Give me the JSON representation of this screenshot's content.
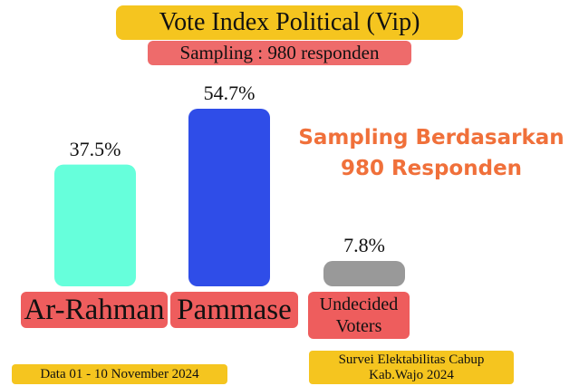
{
  "header": {
    "title": "Vote Index Political (Vip)",
    "subtitle": "Sampling : 980 responden"
  },
  "note": {
    "line1": "Sampling Berdasarkan",
    "line2": "980 Responden"
  },
  "footer": {
    "date": "Data 01 - 10 November 2024",
    "survey_line1": "Survei Elektabilitas Cabup",
    "survey_line2": "Kab.Wajo 2024"
  },
  "chart_data": {
    "type": "bar",
    "categories": [
      "Ar-Rahman",
      "Pammase",
      "Undecided Voters"
    ],
    "values": [
      37.5,
      54.7,
      7.8
    ],
    "value_labels": [
      "37.5%",
      "54.7%",
      "7.8%"
    ],
    "colors": [
      "#66ffdb",
      "#2f4de8",
      "#999999"
    ],
    "ylim": [
      0,
      54.7
    ],
    "grid": false,
    "legend": "none"
  }
}
